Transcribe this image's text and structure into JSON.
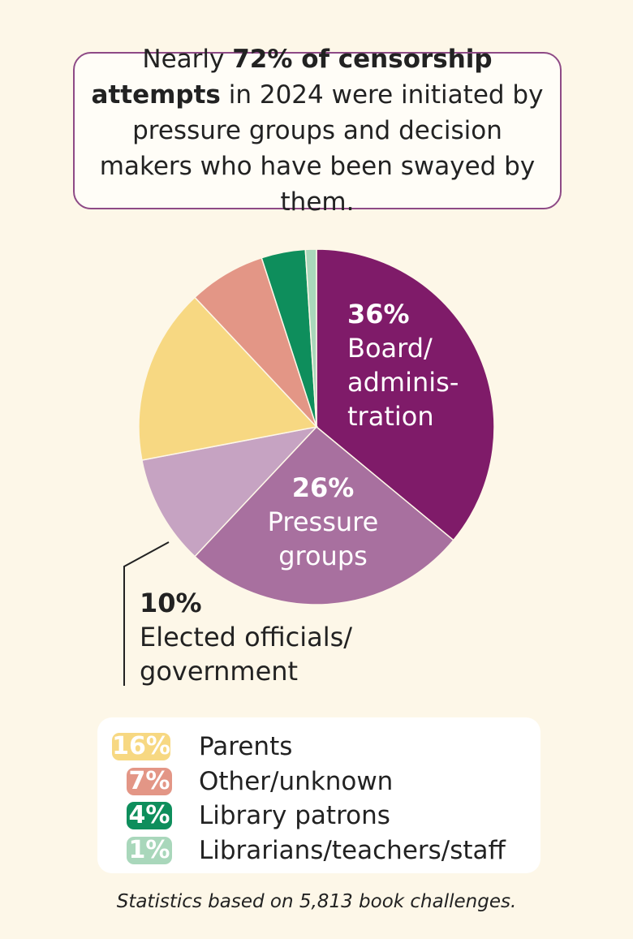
{
  "headline": {
    "prefix": "Nearly ",
    "bold": "72% of censorship attempts",
    "rest": " in 2024 were initiated by pressure groups and decision makers who have been swayed by them."
  },
  "chart_data": {
    "type": "pie",
    "title": "",
    "slices": [
      {
        "label": "Board/ administration",
        "value": 36,
        "display": "36%",
        "color": "#7f1b69"
      },
      {
        "label": "Pressure groups",
        "value": 26,
        "display": "26%",
        "color": "#a8709f"
      },
      {
        "label": "Elected officials/ government",
        "value": 10,
        "display": "10%",
        "color": "#c6a3c2"
      },
      {
        "label": "Parents",
        "value": 16,
        "display": "16%",
        "color": "#f7d882"
      },
      {
        "label": "Other/unknown",
        "value": 7,
        "display": "7%",
        "color": "#e39686"
      },
      {
        "label": "Library patrons",
        "value": 4,
        "display": "4%",
        "color": "#0e8e5c"
      },
      {
        "label": "Librarians/teachers/staff",
        "value": 1,
        "display": "1%",
        "color": "#a9d7bb"
      }
    ],
    "footnote": "Statistics based on 5,813 book challenges."
  },
  "labels": {
    "board": {
      "pct": "36%",
      "line1": "Board/",
      "line2": "adminis-",
      "line3": "tration"
    },
    "pressure": {
      "pct": "26%",
      "line1": "Pressure",
      "line2": "groups"
    },
    "elected": {
      "pct": "10%",
      "line1": "Elected officials/",
      "line2": "government"
    }
  },
  "legend": [
    {
      "pct": "16%",
      "label": "Parents",
      "color": "#f7d882"
    },
    {
      "pct": "7%",
      "label": "Other/unknown",
      "color": "#e39686"
    },
    {
      "pct": "4%",
      "label": "Library patrons",
      "color": "#0e8e5c"
    },
    {
      "pct": "1%",
      "label": "Librarians/teachers/staff",
      "color": "#a9d7bb"
    }
  ]
}
